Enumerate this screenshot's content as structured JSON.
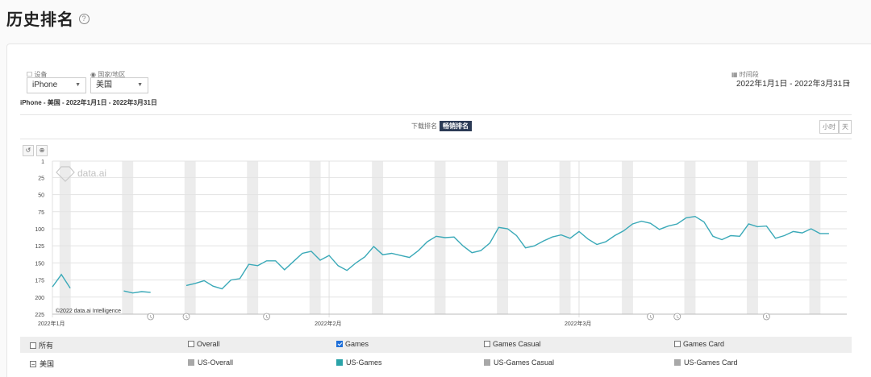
{
  "page_title": "历史排名",
  "help_icon": "question-circle-icon",
  "filters": {
    "device_label": "设备",
    "device_value": "iPhone",
    "country_label": "国家/地区",
    "country_value": "美国",
    "period_label": "时间段",
    "period_value": "2022年1月1日 - 2022年3月31日"
  },
  "subtitle": "iPhone - 美国 - 2022年1月1日 - 2022年3月31日",
  "rank_toggle": {
    "download": "下载排名",
    "grossing": "畅销排名",
    "active": "grossing"
  },
  "granularity": {
    "hour": "小时",
    "day": "天"
  },
  "tools": {
    "reset": "↺",
    "zoom": "⊕"
  },
  "watermark": "data.ai",
  "copyright": "©2022 data.ai Intelligence",
  "colors": {
    "line": "#3aa9b8",
    "weekend": "#ececec",
    "accent": "#2b3a55"
  },
  "chart_data": {
    "type": "line",
    "y_inverted": true,
    "ylim": [
      1,
      225
    ],
    "yticks": [
      "1",
      "25",
      "50",
      "75",
      "100",
      "125",
      "150",
      "175",
      "200",
      "225"
    ],
    "xticks": [
      {
        "day": 0,
        "label": "2022年1月"
      },
      {
        "day": 31,
        "label": "2022年2月"
      },
      {
        "day": 59,
        "label": "2022年3月"
      }
    ],
    "xlim": [
      0,
      89
    ],
    "series": [
      {
        "name": "US-Games",
        "points": [
          [
            0,
            185
          ],
          [
            1,
            167
          ],
          [
            2,
            187
          ],
          null,
          [
            8,
            191
          ],
          [
            9,
            194
          ],
          [
            10,
            192
          ],
          [
            11,
            193
          ],
          null,
          [
            15,
            183
          ],
          [
            16,
            180
          ],
          [
            17,
            176
          ],
          [
            18,
            184
          ],
          [
            19,
            188
          ],
          [
            20,
            175
          ],
          [
            21,
            173
          ],
          [
            22,
            152
          ],
          [
            23,
            154
          ],
          [
            24,
            147
          ],
          [
            25,
            147
          ],
          [
            26,
            160
          ],
          [
            27,
            148
          ],
          [
            28,
            136
          ],
          [
            29,
            133
          ],
          [
            30,
            146
          ],
          [
            31,
            139
          ],
          [
            32,
            154
          ],
          [
            33,
            161
          ],
          [
            34,
            150
          ],
          [
            35,
            141
          ],
          [
            36,
            126
          ],
          [
            37,
            138
          ],
          [
            38,
            136
          ],
          [
            39,
            139
          ],
          [
            40,
            142
          ],
          [
            41,
            132
          ],
          [
            42,
            119
          ],
          [
            43,
            111
          ],
          [
            44,
            113
          ],
          [
            45,
            112
          ],
          [
            46,
            125
          ],
          [
            47,
            135
          ],
          [
            48,
            132
          ],
          [
            49,
            121
          ],
          [
            50,
            98
          ],
          [
            51,
            100
          ],
          [
            52,
            110
          ],
          [
            53,
            128
          ],
          [
            54,
            125
          ],
          [
            55,
            118
          ],
          [
            56,
            112
          ],
          [
            57,
            109
          ],
          [
            58,
            114
          ],
          [
            59,
            104
          ],
          [
            60,
            115
          ],
          [
            61,
            123
          ],
          [
            62,
            119
          ],
          [
            63,
            110
          ],
          [
            64,
            103
          ],
          [
            65,
            93
          ],
          [
            66,
            89
          ],
          [
            67,
            92
          ],
          [
            68,
            101
          ],
          [
            69,
            96
          ],
          [
            70,
            93
          ],
          [
            71,
            84
          ],
          [
            72,
            82
          ],
          [
            73,
            90
          ],
          [
            74,
            111
          ],
          [
            75,
            116
          ],
          [
            76,
            110
          ],
          [
            77,
            111
          ],
          [
            78,
            93
          ],
          [
            79,
            97
          ],
          [
            80,
            96
          ],
          [
            81,
            114
          ],
          [
            82,
            110
          ],
          [
            83,
            104
          ],
          [
            84,
            106
          ],
          [
            85,
            100
          ],
          [
            86,
            107
          ],
          [
            87,
            107
          ]
        ]
      }
    ],
    "event_markers": [
      11,
      15,
      24,
      67,
      70,
      80
    ],
    "weekend_start_days": [
      1,
      8,
      15,
      22,
      29,
      36,
      43,
      50,
      57,
      64,
      71,
      78,
      85
    ]
  },
  "legend_table": {
    "header": [
      {
        "label": "所有",
        "checked": false
      },
      {
        "label": "Overall",
        "checked": false
      },
      {
        "label": "Games",
        "checked": true
      },
      {
        "label": "Games Casual",
        "checked": false
      },
      {
        "label": "Games Card",
        "checked": false
      }
    ],
    "row_label": "美国",
    "row": [
      {
        "label": "US-Overall",
        "color": "#a8a8a8"
      },
      {
        "label": "US-Games",
        "color": "#2aa3a8"
      },
      {
        "label": "US-Games Casual",
        "color": "#a8a8a8"
      },
      {
        "label": "US-Games Card",
        "color": "#a8a8a8"
      }
    ]
  }
}
